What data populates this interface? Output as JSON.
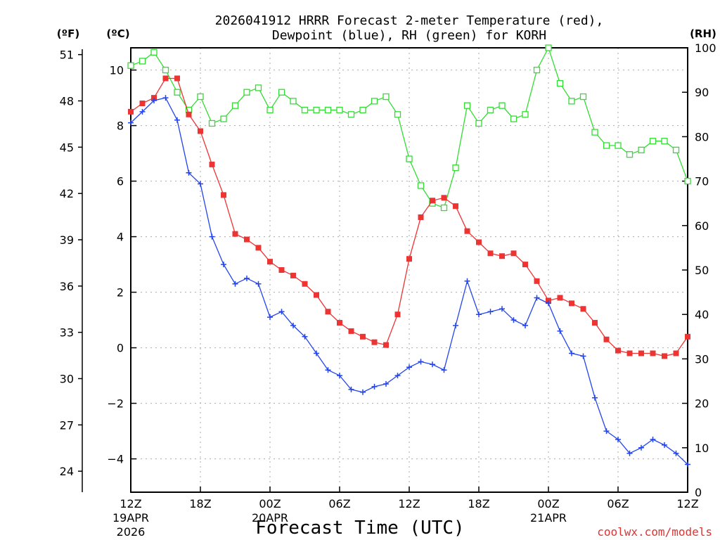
{
  "chart_data": {
    "type": "line",
    "title": "2026041912 HRRR Forecast 2-meter Temperature (red),",
    "title_line2": "Dewpoint (blue), RH (green) for KORH",
    "xlabel": "Forecast Time (UTC)",
    "credit": "coolwx.com/models",
    "left_axis_label_f": "(ºF)",
    "left_axis_label_c": "(ºC)",
    "right_axis_label": "(RH)",
    "x": [
      0,
      1,
      2,
      3,
      4,
      5,
      6,
      7,
      8,
      9,
      10,
      11,
      12,
      13,
      14,
      15,
      16,
      17,
      18,
      19,
      20,
      21,
      22,
      23,
      24,
      25,
      26,
      27,
      28,
      29,
      30,
      31,
      32,
      33,
      34,
      35,
      36,
      37,
      38,
      39,
      40,
      41,
      42,
      43,
      44,
      45,
      46,
      47,
      48
    ],
    "x_range": [
      0,
      48
    ],
    "x_ticks": [
      {
        "x": 0,
        "label": "12Z",
        "sub1": "19APR",
        "sub2": "2026"
      },
      {
        "x": 6,
        "label": "18Z"
      },
      {
        "x": 12,
        "label": "00Z",
        "sub1": "20APR"
      },
      {
        "x": 18,
        "label": "06Z"
      },
      {
        "x": 24,
        "label": "12Z"
      },
      {
        "x": 30,
        "label": "18Z"
      },
      {
        "x": 36,
        "label": "00Z",
        "sub1": "21APR"
      },
      {
        "x": 42,
        "label": "06Z"
      },
      {
        "x": 48,
        "label": "12Z"
      }
    ],
    "celsius_range": [
      -5.2,
      10.8
    ],
    "celsius_ticks": [
      {
        "v": 10,
        "label": "10"
      },
      {
        "v": 8,
        "label": "8"
      },
      {
        "v": 6,
        "label": "6"
      },
      {
        "v": 4,
        "label": "4"
      },
      {
        "v": 2,
        "label": "2"
      },
      {
        "v": 0,
        "label": "0"
      },
      {
        "v": -2,
        "label": "−2"
      },
      {
        "v": -4,
        "label": "−4"
      }
    ],
    "fahrenheit_ticks": [
      "51",
      "48",
      "45",
      "42",
      "39",
      "36",
      "33",
      "30",
      "27",
      "24"
    ],
    "rh_range": [
      0,
      100
    ],
    "rh_ticks": [
      "100",
      "90",
      "80",
      "70",
      "60",
      "50",
      "40",
      "30",
      "20",
      "10",
      "0"
    ],
    "series": [
      {
        "name": "Temperature",
        "units": "C",
        "color": "#ee3333",
        "marker": "filled-square",
        "values": [
          8.5,
          8.8,
          9.0,
          9.7,
          9.7,
          8.4,
          7.8,
          6.6,
          5.5,
          4.1,
          3.9,
          3.6,
          3.1,
          2.8,
          2.6,
          2.3,
          1.9,
          1.3,
          0.9,
          0.6,
          0.4,
          0.2,
          0.1,
          1.2,
          3.2,
          4.7,
          5.3,
          5.4,
          5.1,
          4.2,
          3.8,
          3.4,
          3.3,
          3.4,
          3.0,
          2.4,
          1.7,
          1.8,
          1.6,
          1.4,
          0.9,
          0.3,
          -0.1,
          -0.2,
          -0.2,
          -0.2,
          -0.3,
          -0.2,
          0.4
        ]
      },
      {
        "name": "Dewpoint",
        "units": "C",
        "color": "#2244ee",
        "marker": "plus",
        "values": [
          8.1,
          8.5,
          8.9,
          9.0,
          8.2,
          6.3,
          5.9,
          4.0,
          3.0,
          2.3,
          2.5,
          2.3,
          1.1,
          1.3,
          0.8,
          0.4,
          -0.2,
          -0.8,
          -1.0,
          -1.5,
          -1.6,
          -1.4,
          -1.3,
          -1.0,
          -0.7,
          -0.5,
          -0.6,
          -0.8,
          0.8,
          2.4,
          1.2,
          1.3,
          1.4,
          1.0,
          0.8,
          1.8,
          1.6,
          0.6,
          -0.2,
          -0.3,
          -1.8,
          -3.0,
          -3.3,
          -3.8,
          -3.6,
          -3.3,
          -3.5,
          -3.8,
          -4.2
        ]
      },
      {
        "name": "RH",
        "units": "%",
        "color": "#33dd33",
        "marker": "open-square",
        "values": [
          96,
          97,
          99,
          95,
          90,
          86,
          89,
          83,
          84,
          87,
          90,
          91,
          86,
          90,
          88,
          86,
          86,
          86,
          86,
          85,
          86,
          88,
          89,
          85,
          75,
          69,
          65,
          64,
          73,
          87,
          83,
          86,
          87,
          84,
          85,
          95,
          100,
          92,
          88,
          89,
          81,
          78,
          78,
          76,
          77,
          79,
          79,
          77,
          70
        ]
      }
    ]
  }
}
